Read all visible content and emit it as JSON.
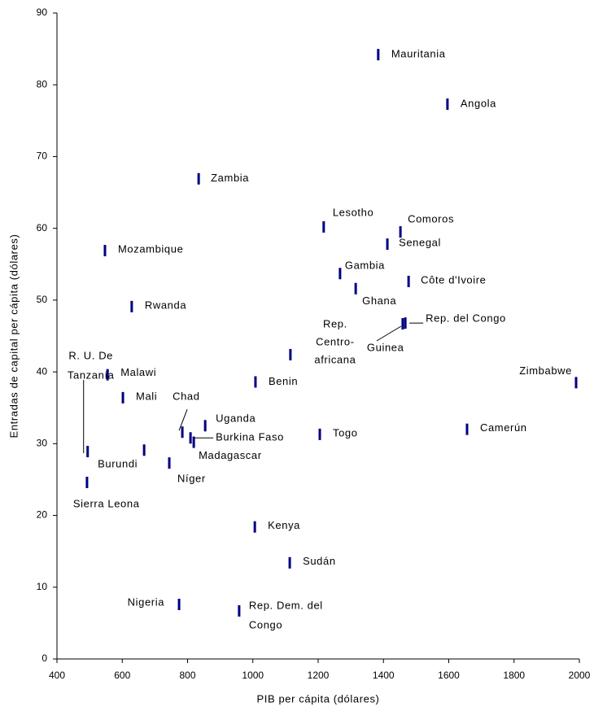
{
  "chart_data": {
    "type": "scatter",
    "x_label": "PIB per cápita (dólares)",
    "y_label": "Entradas de capital per cápita (dólares)",
    "xlim": [
      400,
      2000
    ],
    "ylim": [
      0,
      90
    ],
    "xticks": [
      400,
      600,
      800,
      1000,
      1200,
      1400,
      1600,
      1800,
      2000
    ],
    "yticks": [
      0,
      10,
      20,
      30,
      40,
      50,
      60,
      70,
      80,
      90
    ],
    "series": [
      {
        "color": "#000080",
        "labels": [
          [
            "Mauritania"
          ],
          [
            "Angola"
          ],
          [
            "Zambia"
          ],
          [
            "Lesotho"
          ],
          [
            "Comoros"
          ],
          [
            "Senegal"
          ],
          [
            "Mozambique"
          ],
          [
            "Gambia"
          ],
          [
            "Côte d'Ivoire"
          ],
          [
            "Ghana"
          ],
          [
            "Rwanda"
          ],
          [
            "Rep. del Congo"
          ],
          [
            "Guinea"
          ],
          [
            "Rep.",
            "Centro-",
            "africana"
          ],
          [
            "Zimbabwe"
          ],
          [
            "Benin"
          ],
          [
            "R. U. De",
            "Tanzanía"
          ],
          [
            "Malawi"
          ],
          [
            "Mali"
          ],
          [
            "Chad"
          ],
          [
            "Uganda"
          ],
          [
            "Burkina Faso"
          ],
          [
            "Madagascar"
          ],
          [
            "Togo"
          ],
          [
            "Camerún"
          ],
          [
            "Burundi"
          ],
          [
            "Níger"
          ],
          [
            "Sierra Leona"
          ],
          [
            "Kenya"
          ],
          [
            "Sudán"
          ],
          [
            "Nigeria"
          ],
          [
            "Rep. Dem. del",
            "Congo"
          ]
        ],
        "x": [
          1384,
          1596,
          834,
          1217,
          1452,
          1412,
          547,
          1267,
          1477,
          1315,
          629,
          1467,
          1459,
          1115,
          1990,
          1008,
          494,
          555,
          602,
          784,
          854,
          809,
          819,
          1205,
          1656,
          667,
          744,
          492,
          1006,
          1113,
          774,
          958
        ],
        "values": [
          84.2,
          77.3,
          66.9,
          60.2,
          59.5,
          57.8,
          56.9,
          53.7,
          52.6,
          51.6,
          49.1,
          46.8,
          46.7,
          42.4,
          38.5,
          38.6,
          28.9,
          39.6,
          36.4,
          31.6,
          32.5,
          30.8,
          30.2,
          31.3,
          32.0,
          29.1,
          27.3,
          24.6,
          18.4,
          13.4,
          7.6,
          6.7
        ]
      }
    ]
  }
}
